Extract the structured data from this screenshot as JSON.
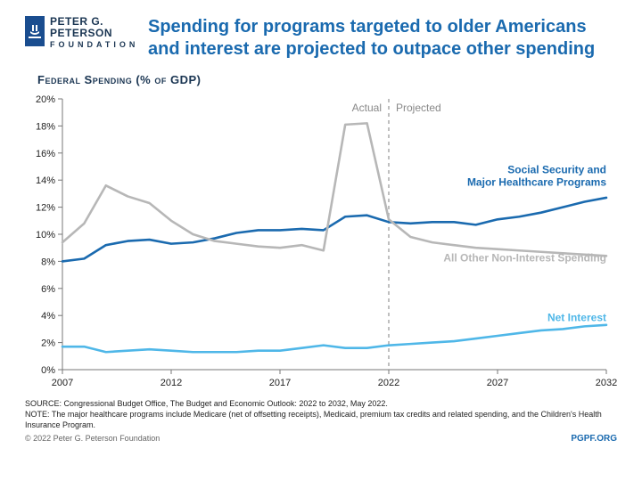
{
  "logo": {
    "name_line1": "PETER G.",
    "name_line2": "PETERSON",
    "tag": "FOUNDATION",
    "mark": "≗"
  },
  "title": "Spending for programs targeted to older Americans and interest are projected to outpace other spending",
  "subtitle": "Federal Spending (% of GDP)",
  "chart": {
    "type": "line",
    "x_start": 2007,
    "x_end": 2032,
    "x_ticks": [
      2007,
      2012,
      2017,
      2022,
      2027,
      2032
    ],
    "ylim": [
      0,
      20
    ],
    "y_ticks": [
      0,
      2,
      4,
      6,
      8,
      10,
      12,
      14,
      16,
      18,
      20
    ],
    "divider_year": 2022,
    "ann_actual": "Actual",
    "ann_projected": "Projected",
    "background": "#ffffff",
    "axis_color": "#777777",
    "series": [
      {
        "id": "ss_healthcare",
        "label": "Social Security and\nMajor Healthcare Programs",
        "color": "#1a6aaf",
        "width": 2.6,
        "label_x": 2032,
        "label_y": 13.6,
        "values": [
          8.0,
          8.2,
          9.2,
          9.5,
          9.6,
          9.3,
          9.4,
          9.7,
          10.1,
          10.3,
          10.3,
          10.4,
          10.3,
          11.3,
          11.4,
          10.9,
          10.8,
          10.9,
          10.9,
          10.7,
          11.1,
          11.3,
          11.6,
          12.0,
          12.4,
          12.7
        ]
      },
      {
        "id": "other",
        "label": "All Other Non-Interest Spending",
        "color": "#b7b7b7",
        "width": 2.6,
        "label_x": 2032,
        "label_y": 8.0,
        "values": [
          9.4,
          10.8,
          13.6,
          12.8,
          12.3,
          11.0,
          10.0,
          9.5,
          9.3,
          9.1,
          9.0,
          9.2,
          8.8,
          18.1,
          18.2,
          11.1,
          9.8,
          9.4,
          9.2,
          9.0,
          8.9,
          8.8,
          8.7,
          8.6,
          8.5,
          8.4
        ]
      },
      {
        "id": "net_interest",
        "label": "Net Interest",
        "color": "#4fb7e8",
        "width": 2.6,
        "label_x": 2032,
        "label_y": 3.6,
        "values": [
          1.7,
          1.7,
          1.3,
          1.4,
          1.5,
          1.4,
          1.3,
          1.3,
          1.3,
          1.4,
          1.4,
          1.6,
          1.8,
          1.6,
          1.6,
          1.8,
          1.9,
          2.0,
          2.1,
          2.3,
          2.5,
          2.7,
          2.9,
          3.0,
          3.2,
          3.3
        ]
      }
    ]
  },
  "footnotes": {
    "source": "SOURCE: Congressional Budget Office, The Budget and Economic Outlook: 2022 to 2032, May 2022.",
    "note": "NOTE: The major healthcare programs include Medicare (net of offsetting receipts), Medicaid, premium tax credits and related spending, and the Children's Health Insurance Program."
  },
  "footer": {
    "copyright": "© 2022 Peter G. Peterson Foundation",
    "link": "PGPF.ORG"
  }
}
